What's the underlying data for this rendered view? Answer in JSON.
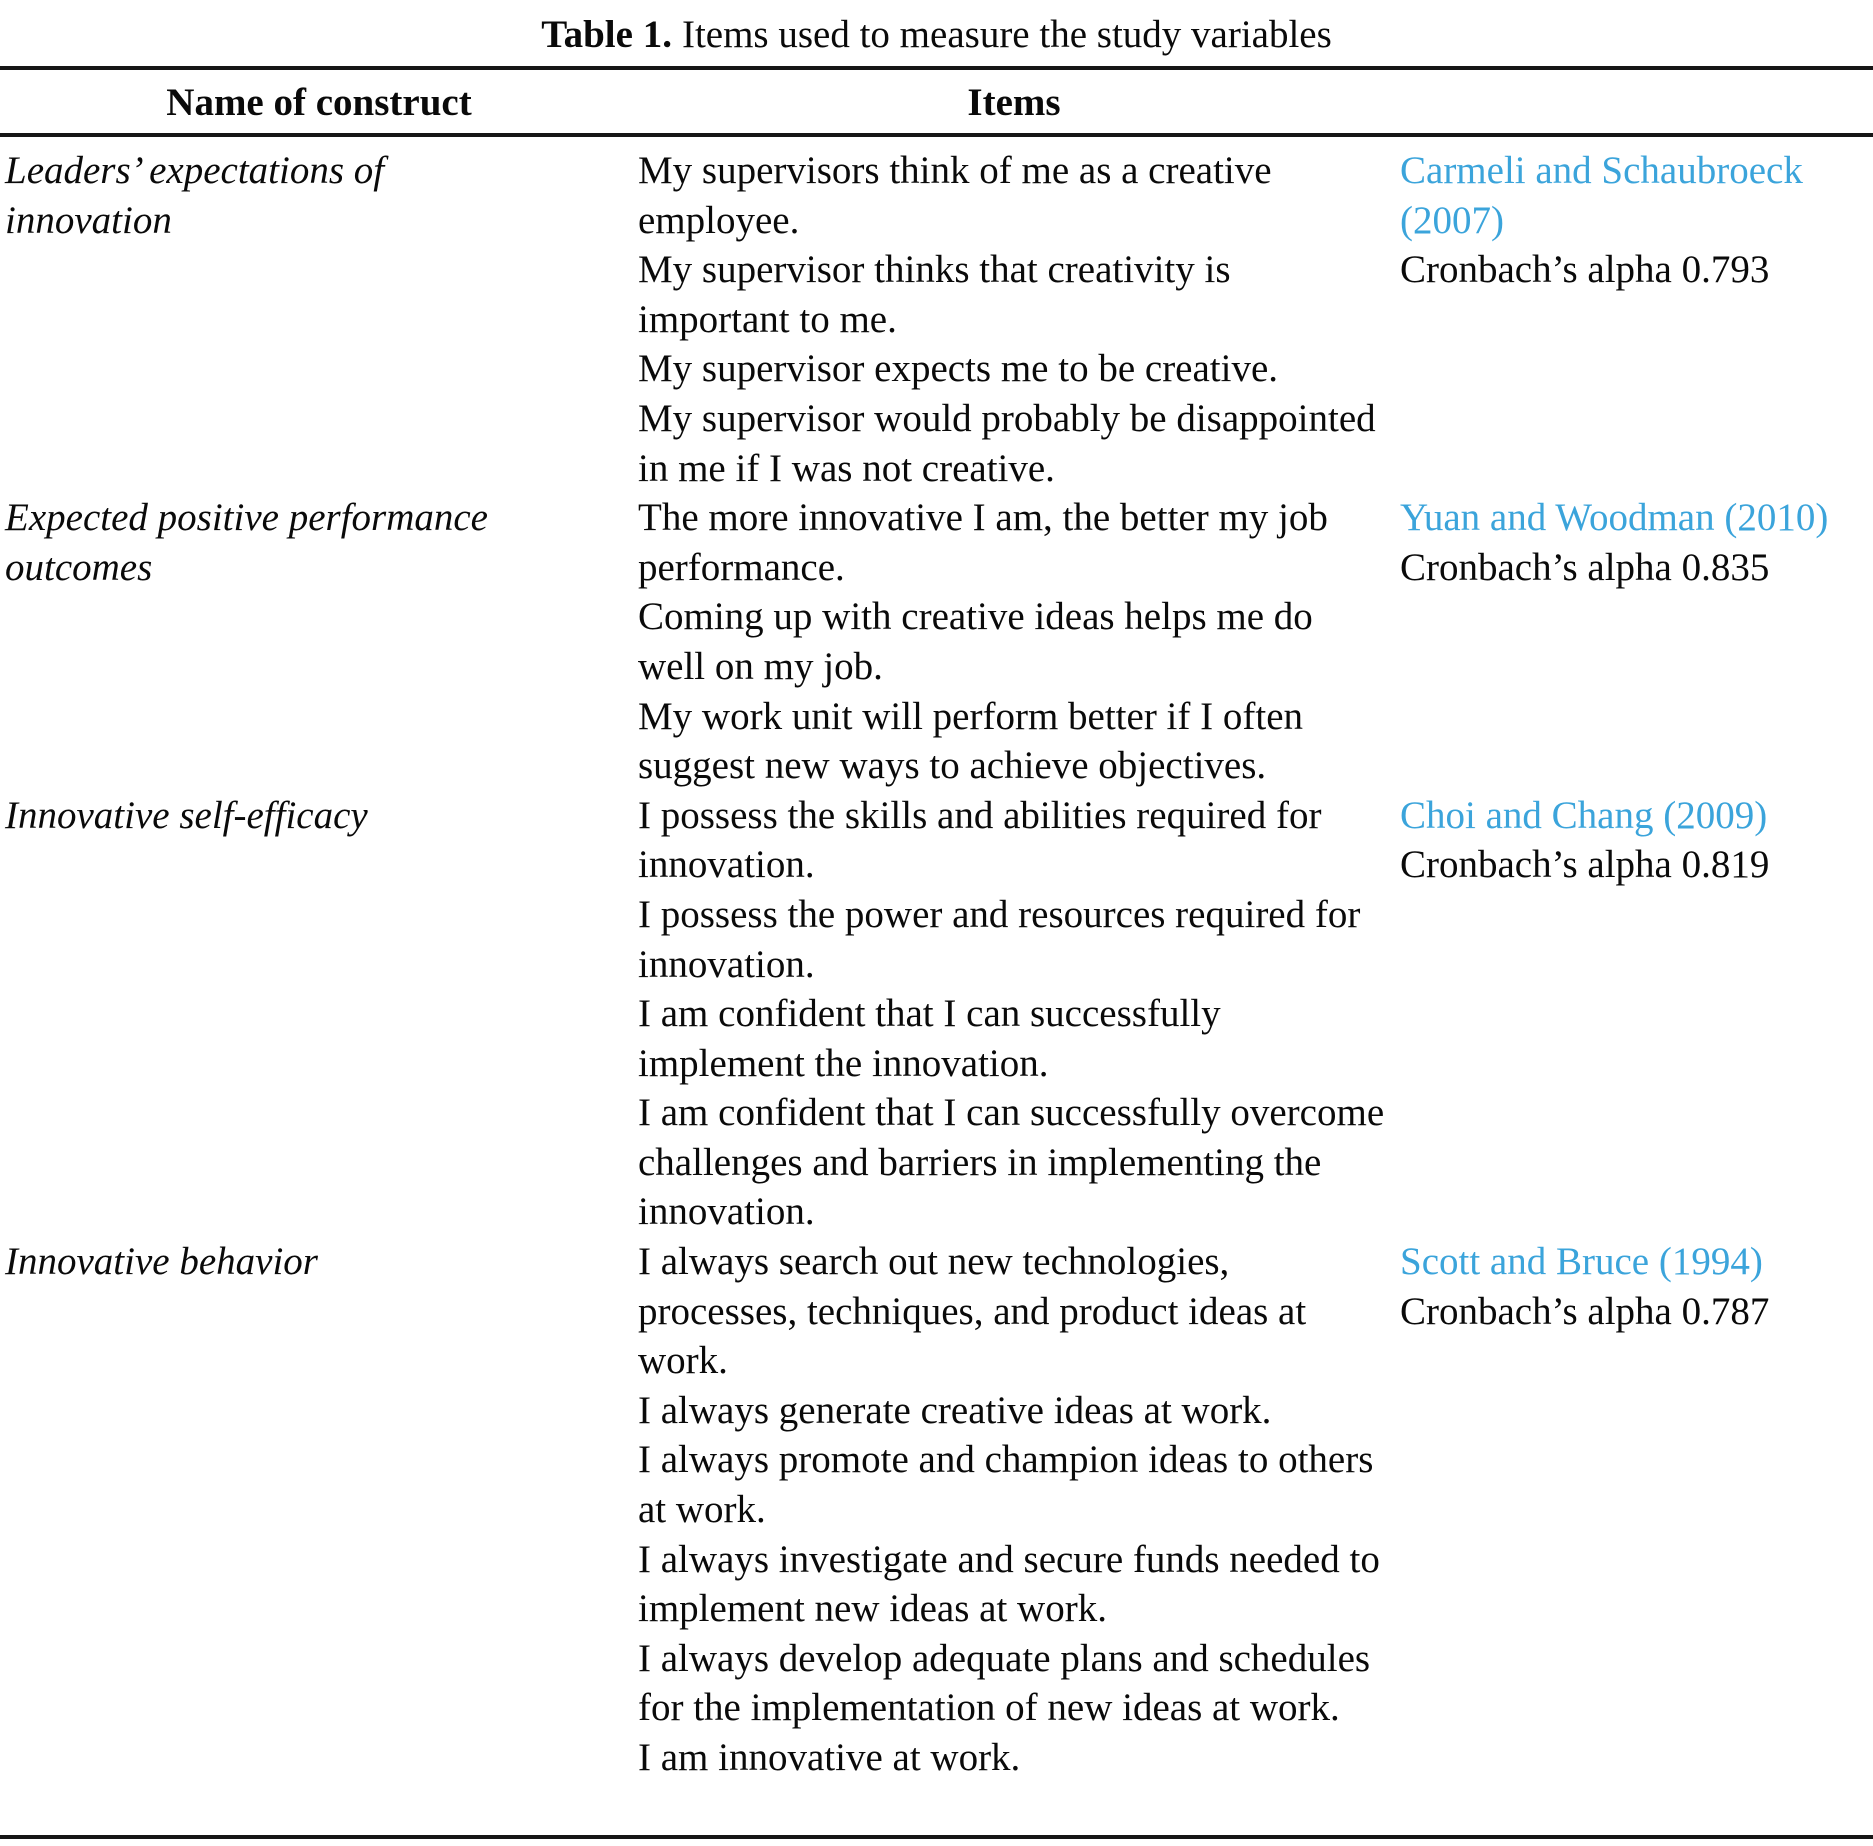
{
  "title": {
    "label": "Table 1.",
    "text": "Items used to measure the study variables"
  },
  "header": {
    "construct_col": "Name of construct",
    "items_col": "Items"
  },
  "colors": {
    "citation_link": "#3ba4db",
    "text": "#0a0a0a",
    "rule": "#161616"
  },
  "rows": [
    {
      "construct": "Leaders’ expectations of innovation",
      "items": [
        "My supervisors think of me as a creative employee.",
        "My supervisor thinks that creativity is important to me.",
        "My supervisor expects me to be creative.",
        "My supervisor would probably be disappointed in me if I was not creative."
      ],
      "source": "Carmeli and Schaubroeck (2007)",
      "alpha": "Cronbach’s alpha 0.793"
    },
    {
      "construct": "Expected positive performance outcomes",
      "items": [
        "The more innovative I am, the better my job performance.",
        "Coming up with creative ideas helps me do well on my job.",
        "My work unit will perform better if I often suggest new ways to achieve objectives."
      ],
      "source": "Yuan and Woodman (2010)",
      "alpha": "Cronbach’s alpha 0.835"
    },
    {
      "construct": "Innovative self-efficacy",
      "items": [
        "I possess the skills and abilities required for innovation.",
        "I possess the power and resources required for innovation.",
        "I am confident that I can successfully implement the innovation.",
        "I am confident that I can successfully overcome challenges and barriers in implementing the innovation."
      ],
      "source": "Choi and Chang (2009)",
      "alpha": "Cronbach’s alpha 0.819"
    },
    {
      "construct": "Innovative behavior",
      "items": [
        "I always search out new technologies, processes, techniques, and product ideas at work.",
        "I always generate creative ideas at work.",
        "I always promote and champion ideas to others at work.",
        "I always investigate and secure funds needed to implement new ideas at work.",
        "I always develop adequate plans and schedules for the implementation of new ideas at work.",
        "I am innovative at work."
      ],
      "source": "Scott and Bruce (1994)",
      "alpha": "Cronbach’s alpha 0.787"
    }
  ]
}
